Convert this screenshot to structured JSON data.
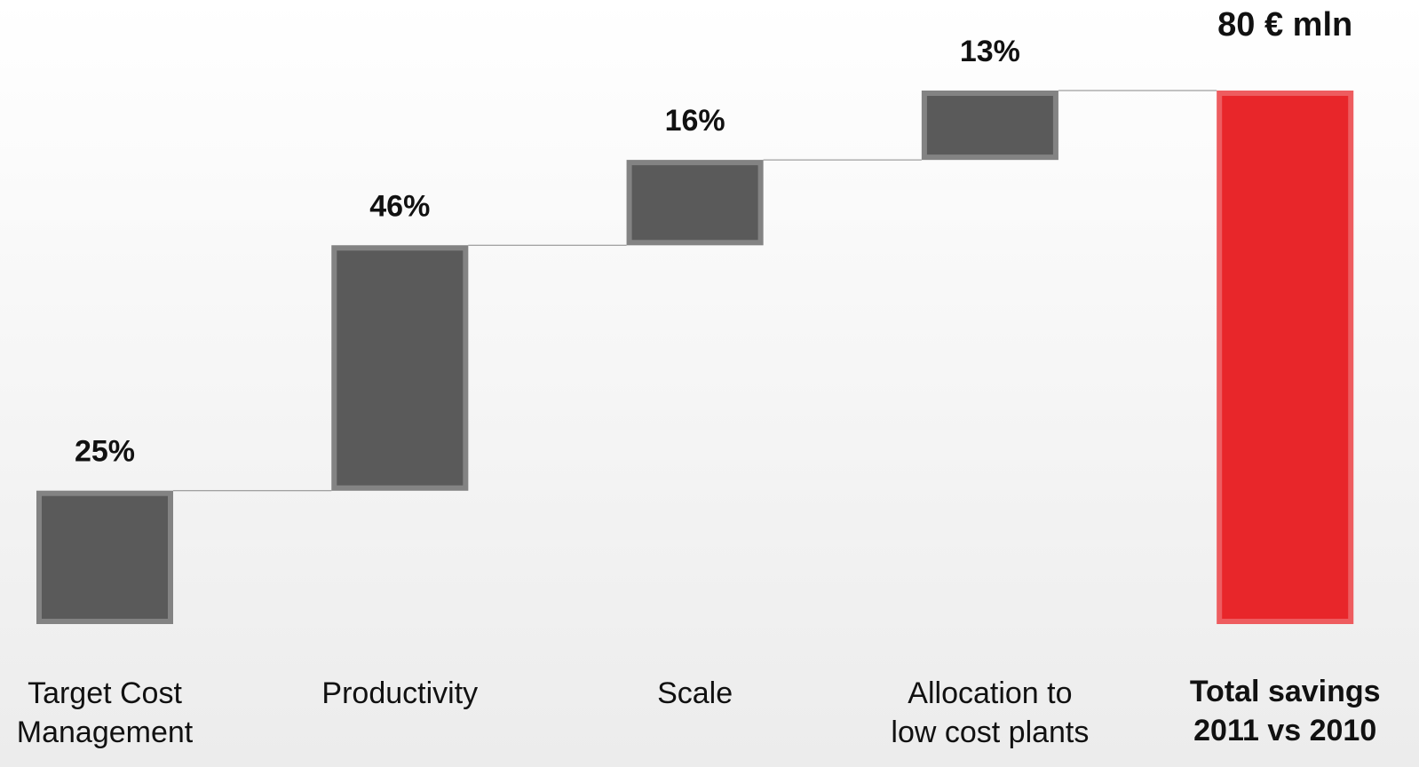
{
  "chart_data": {
    "type": "waterfall",
    "categories": [
      [
        "Target Cost",
        "Management"
      ],
      [
        "Productivity"
      ],
      [
        "Scale"
      ],
      [
        "Allocation to",
        "low cost plants"
      ]
    ],
    "values": [
      25,
      46,
      16,
      13
    ],
    "value_labels": [
      "25%",
      "46%",
      "16%",
      "13%"
    ],
    "color": "#5a5a5a",
    "total": {
      "category": [
        "Total savings",
        "2011 vs 2010"
      ],
      "label": "80 € mln",
      "color": "#e8262a"
    }
  }
}
